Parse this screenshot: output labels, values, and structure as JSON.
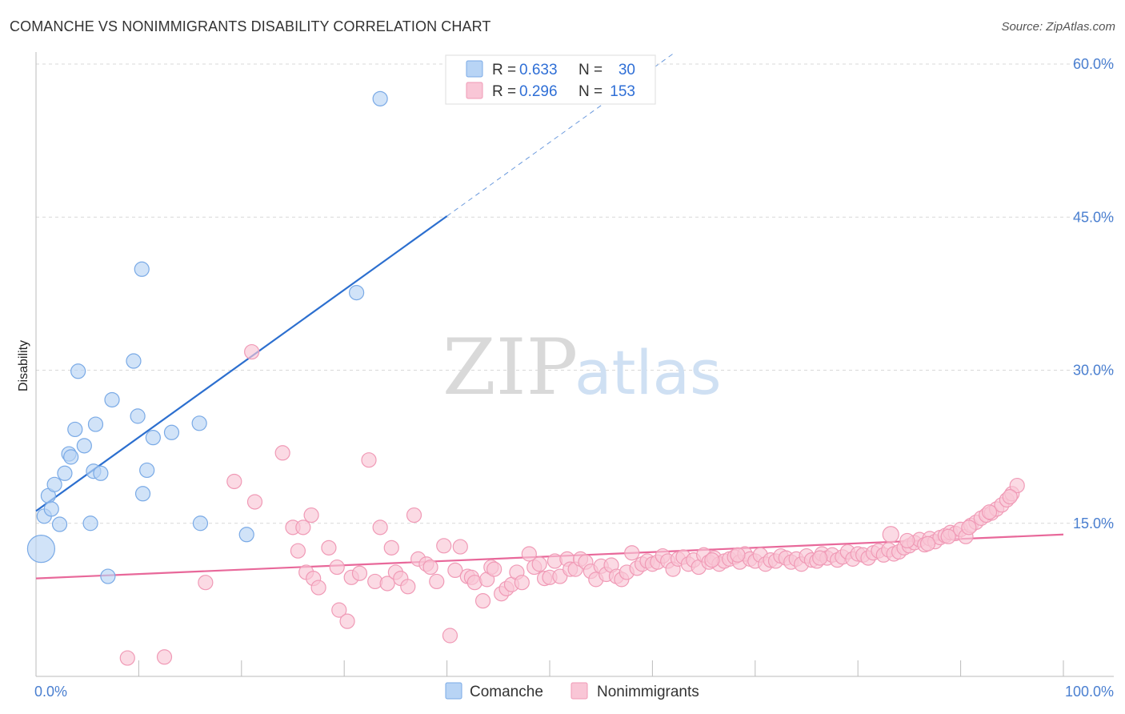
{
  "title": "COMANCHE VS NONIMMIGRANTS DISABILITY CORRELATION CHART",
  "source": "Source: ZipAtlas.com",
  "watermark": {
    "zip": "ZIP",
    "atlas": "atlas"
  },
  "colors": {
    "comanche_fill": "#b8d4f5",
    "comanche_stroke": "#7aaae6",
    "comanche_line": "#2c6fcf",
    "nonimm_fill": "#f9c6d6",
    "nonimm_stroke": "#f09ab6",
    "nonimm_line": "#e8689a",
    "grid": "#d9d9d9",
    "tick_text": "#4a7fd0"
  },
  "legend": {
    "rows": [
      {
        "r_label": "R = ",
        "r_value": "0.633",
        "n_label": "N = ",
        "n_value": "30"
      },
      {
        "r_label": "R = ",
        "r_value": "0.296",
        "n_label": "N = ",
        "n_value": "153"
      }
    ]
  },
  "chart_data": {
    "type": "scatter",
    "title": "COMANCHE VS NONIMMIGRANTS DISABILITY CORRELATION CHART",
    "xlabel": "",
    "ylabel": "Disability",
    "xlim": [
      0,
      100
    ],
    "ylim": [
      0,
      60
    ],
    "x_tick_labels": [
      "0.0%",
      "100.0%"
    ],
    "y_ticks": [
      15,
      30,
      45,
      60
    ],
    "y_tick_labels": [
      "15.0%",
      "30.0%",
      "45.0%",
      "60.0%"
    ],
    "grid": true,
    "legend_position": "top-center",
    "series": [
      {
        "name": "Comanche",
        "points": [
          [
            0.5,
            12.5
          ],
          [
            0.8,
            15.7
          ],
          [
            1.2,
            17.7
          ],
          [
            1.5,
            16.4
          ],
          [
            1.8,
            18.8
          ],
          [
            2.3,
            14.9
          ],
          [
            2.8,
            19.9
          ],
          [
            3.2,
            21.8
          ],
          [
            3.4,
            21.5
          ],
          [
            3.8,
            24.2
          ],
          [
            4.1,
            29.9
          ],
          [
            4.7,
            22.6
          ],
          [
            5.3,
            15.0
          ],
          [
            5.6,
            20.1
          ],
          [
            5.8,
            24.7
          ],
          [
            6.3,
            19.9
          ],
          [
            7.0,
            9.8
          ],
          [
            7.4,
            27.1
          ],
          [
            9.5,
            30.9
          ],
          [
            9.9,
            25.5
          ],
          [
            10.3,
            39.9
          ],
          [
            10.4,
            17.9
          ],
          [
            10.8,
            20.2
          ],
          [
            11.4,
            23.4
          ],
          [
            13.2,
            23.9
          ],
          [
            15.9,
            24.8
          ],
          [
            16.0,
            15.0
          ],
          [
            20.5,
            13.9
          ],
          [
            31.2,
            37.6
          ],
          [
            33.5,
            56.6
          ]
        ],
        "trend": {
          "x0": 0.0,
          "y0": 16.2,
          "x1": 40.0,
          "y1": 45.1,
          "dashed_to_x": 62.0,
          "dashed_to_y": 61.0
        }
      },
      {
        "name": "Nonimmigrants",
        "points": [
          [
            8.9,
            1.8
          ],
          [
            12.5,
            1.9
          ],
          [
            16.5,
            9.2
          ],
          [
            19.3,
            19.1
          ],
          [
            21.0,
            31.8
          ],
          [
            21.3,
            17.1
          ],
          [
            24.0,
            21.9
          ],
          [
            25.0,
            14.6
          ],
          [
            25.5,
            12.3
          ],
          [
            26.0,
            14.6
          ],
          [
            26.3,
            10.2
          ],
          [
            26.8,
            15.8
          ],
          [
            27.0,
            9.6
          ],
          [
            27.5,
            8.7
          ],
          [
            28.5,
            12.6
          ],
          [
            29.3,
            10.7
          ],
          [
            29.5,
            6.5
          ],
          [
            30.3,
            5.4
          ],
          [
            30.7,
            9.7
          ],
          [
            31.5,
            10.1
          ],
          [
            32.4,
            21.2
          ],
          [
            33.0,
            9.3
          ],
          [
            33.5,
            14.6
          ],
          [
            34.2,
            9.1
          ],
          [
            34.6,
            12.6
          ],
          [
            35.0,
            10.2
          ],
          [
            35.5,
            9.6
          ],
          [
            36.2,
            8.8
          ],
          [
            36.8,
            15.8
          ],
          [
            37.2,
            11.5
          ],
          [
            38.0,
            11.0
          ],
          [
            38.4,
            10.7
          ],
          [
            39.0,
            9.3
          ],
          [
            39.7,
            12.8
          ],
          [
            40.3,
            4.0
          ],
          [
            40.8,
            10.4
          ],
          [
            41.3,
            12.7
          ],
          [
            42.0,
            9.8
          ],
          [
            42.4,
            9.7
          ],
          [
            42.7,
            9.2
          ],
          [
            43.5,
            7.4
          ],
          [
            43.9,
            9.5
          ],
          [
            44.3,
            10.7
          ],
          [
            44.6,
            10.5
          ],
          [
            45.3,
            8.1
          ],
          [
            45.8,
            8.6
          ],
          [
            46.3,
            9.0
          ],
          [
            46.8,
            10.2
          ],
          [
            47.3,
            9.2
          ],
          [
            48.0,
            12.0
          ],
          [
            48.5,
            10.7
          ],
          [
            49.0,
            11.0
          ],
          [
            49.5,
            9.6
          ],
          [
            50.0,
            9.7
          ],
          [
            50.5,
            11.3
          ],
          [
            51.0,
            9.8
          ],
          [
            51.7,
            11.5
          ],
          [
            52.0,
            10.5
          ],
          [
            52.5,
            10.5
          ],
          [
            53.0,
            11.5
          ],
          [
            53.5,
            11.2
          ],
          [
            54.0,
            10.3
          ],
          [
            54.5,
            9.5
          ],
          [
            55.0,
            10.8
          ],
          [
            55.5,
            10.0
          ],
          [
            56.0,
            10.9
          ],
          [
            56.5,
            9.8
          ],
          [
            57.0,
            9.5
          ],
          [
            57.5,
            10.2
          ],
          [
            58.0,
            12.1
          ],
          [
            58.5,
            10.6
          ],
          [
            59.0,
            11.0
          ],
          [
            59.5,
            11.3
          ],
          [
            60.0,
            11.0
          ],
          [
            60.5,
            11.2
          ],
          [
            61.0,
            11.8
          ],
          [
            61.5,
            11.3
          ],
          [
            62.0,
            10.5
          ],
          [
            62.5,
            11.5
          ],
          [
            63.0,
            11.7
          ],
          [
            63.5,
            11.0
          ],
          [
            64.0,
            11.4
          ],
          [
            64.5,
            10.7
          ],
          [
            65.0,
            11.9
          ],
          [
            65.5,
            11.2
          ],
          [
            66.0,
            11.6
          ],
          [
            66.5,
            11.0
          ],
          [
            67.0,
            11.3
          ],
          [
            67.5,
            11.5
          ],
          [
            68.0,
            11.7
          ],
          [
            68.5,
            11.2
          ],
          [
            69.0,
            12.0
          ],
          [
            69.5,
            11.5
          ],
          [
            70.0,
            11.3
          ],
          [
            70.5,
            11.9
          ],
          [
            71.0,
            11.0
          ],
          [
            71.5,
            11.4
          ],
          [
            72.0,
            11.3
          ],
          [
            72.5,
            11.8
          ],
          [
            73.0,
            11.6
          ],
          [
            73.5,
            11.2
          ],
          [
            74.0,
            11.5
          ],
          [
            74.5,
            11.0
          ],
          [
            75.0,
            11.8
          ],
          [
            75.5,
            11.4
          ],
          [
            76.0,
            11.3
          ],
          [
            76.5,
            12.0
          ],
          [
            77.0,
            11.6
          ],
          [
            77.5,
            11.9
          ],
          [
            78.0,
            11.4
          ],
          [
            78.5,
            11.7
          ],
          [
            79.0,
            12.2
          ],
          [
            79.5,
            11.5
          ],
          [
            80.0,
            12.0
          ],
          [
            80.5,
            11.9
          ],
          [
            81.0,
            11.6
          ],
          [
            81.5,
            12.1
          ],
          [
            82.0,
            12.3
          ],
          [
            82.5,
            11.9
          ],
          [
            83.0,
            12.4
          ],
          [
            83.5,
            12.0
          ],
          [
            84.0,
            12.2
          ],
          [
            84.5,
            12.6
          ],
          [
            85.0,
            12.8
          ],
          [
            85.5,
            13.1
          ],
          [
            86.0,
            13.4
          ],
          [
            86.5,
            12.9
          ],
          [
            87.0,
            13.5
          ],
          [
            87.5,
            13.2
          ],
          [
            88.0,
            13.6
          ],
          [
            88.5,
            13.8
          ],
          [
            89.0,
            14.1
          ],
          [
            89.5,
            14.0
          ],
          [
            90.0,
            14.4
          ],
          [
            90.5,
            13.7
          ],
          [
            91.0,
            14.8
          ],
          [
            91.5,
            15.1
          ],
          [
            92.0,
            15.5
          ],
          [
            92.5,
            15.8
          ],
          [
            93.0,
            16.0
          ],
          [
            93.5,
            16.4
          ],
          [
            94.0,
            16.8
          ],
          [
            94.5,
            17.3
          ],
          [
            95.0,
            17.9
          ],
          [
            95.5,
            18.7
          ],
          [
            83.2,
            13.9
          ],
          [
            84.8,
            13.3
          ],
          [
            86.8,
            13.0
          ],
          [
            88.8,
            13.7
          ],
          [
            90.8,
            14.6
          ],
          [
            92.8,
            16.1
          ],
          [
            94.8,
            17.6
          ],
          [
            65.8,
            11.4
          ],
          [
            68.3,
            11.9
          ],
          [
            76.3,
            11.6
          ]
        ],
        "trend": {
          "x0": 0.0,
          "y0": 9.6,
          "x1": 100.0,
          "y1": 13.9
        }
      }
    ]
  },
  "bottom_legend": [
    {
      "label": "Comanche"
    },
    {
      "label": "Nonimmigrants"
    }
  ]
}
